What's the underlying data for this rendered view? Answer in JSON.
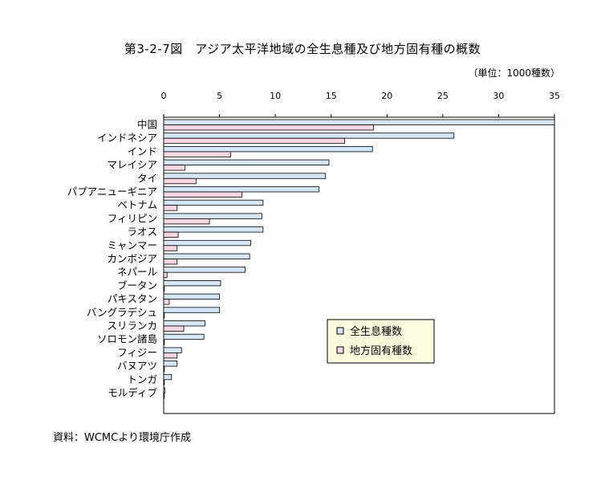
{
  "title": "第3-2-7図　アジア太平洋地域の全生息種及び地方固有種の概数",
  "unit": "（単位：1000種数）",
  "source": "資料：WCMCより環境庁作成",
  "colors": {
    "series1": "#d5e7f7",
    "series2": "#f9d6e1",
    "stroke": "#000000"
  },
  "chart_data": {
    "type": "bar",
    "orientation": "horizontal",
    "categories": [
      "中国",
      "インドネシア",
      "インド",
      "マレイシア",
      "タイ",
      "パプアニューギニア",
      "ベトナム",
      "フィリピン",
      "ラオス",
      "ミャンマー",
      "カンボジア",
      "ネパール",
      "ブータン",
      "パキスタン",
      "バングラデシュ",
      "スリランカ",
      "ソロモン諸島",
      "フィジー",
      "バヌアツ",
      "トンガ",
      "モルディブ"
    ],
    "series": [
      {
        "name": "全生息種数",
        "values": [
          35,
          26,
          18.7,
          14.8,
          14.5,
          13.9,
          8.9,
          8.8,
          8.9,
          7.8,
          7.7,
          7.3,
          5.1,
          5.0,
          5.0,
          3.7,
          3.6,
          1.6,
          1.2,
          0.7,
          0.1
        ]
      },
      {
        "name": "地方固有種数",
        "values": [
          18.8,
          16.2,
          6.0,
          1.9,
          2.9,
          7.0,
          1.2,
          4.1,
          1.3,
          1.2,
          1.2,
          0.3,
          0,
          0.5,
          0,
          1.8,
          0,
          1.2,
          0,
          0,
          0
        ]
      }
    ],
    "xlim": [
      0,
      35
    ],
    "xticks": [
      0,
      5,
      10,
      15,
      20,
      25,
      30,
      35
    ],
    "legend_position": "lower-right"
  }
}
